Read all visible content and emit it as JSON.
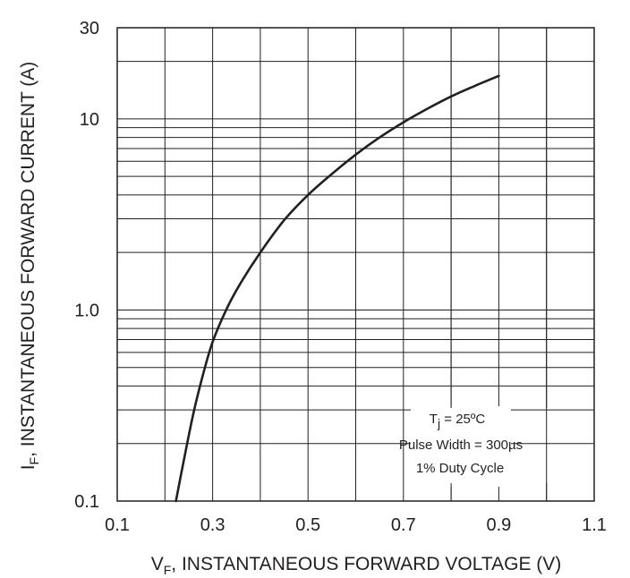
{
  "chart_data": {
    "type": "line",
    "title": "",
    "xlabel": {
      "main": "V",
      "sub": "F",
      "rest": ", INSTANTANEOUS FORWARD VOLTAGE (V)"
    },
    "ylabel": {
      "main": "I",
      "sub": "F",
      "rest": ", INSTANTANEOUS FORWARD CURRENT (A)"
    },
    "x_scale": "linear",
    "y_scale": "log",
    "xlim": [
      0.1,
      1.1
    ],
    "ylim": [
      0.1,
      30
    ],
    "x_ticks": [
      0.1,
      0.3,
      0.5,
      0.7,
      0.9,
      1.1
    ],
    "x_tick_labels": [
      "0.1",
      "0.3",
      "0.5",
      "0.7",
      "0.9",
      "1.1"
    ],
    "y_ticks": [
      0.1,
      1.0,
      10,
      30
    ],
    "y_tick_labels": [
      "0.1",
      "1.0",
      "10",
      "30"
    ],
    "grid": true,
    "x_grid_step": 0.1,
    "y_grid_minor": [
      2,
      3,
      4,
      5,
      6,
      7,
      8,
      9
    ],
    "line_color": "#231f20",
    "grid_color": "#231f20",
    "series": [
      {
        "name": "",
        "x": [
          0.223,
          0.24,
          0.26,
          0.28,
          0.3,
          0.33,
          0.36,
          0.4,
          0.45,
          0.5,
          0.55,
          0.6,
          0.65,
          0.7,
          0.75,
          0.8,
          0.85,
          0.9
        ],
        "y": [
          0.1,
          0.165,
          0.29,
          0.46,
          0.68,
          1.02,
          1.4,
          2.0,
          2.95,
          4.0,
          5.15,
          6.5,
          8.0,
          9.6,
          11.3,
          13.1,
          14.9,
          16.8
        ]
      }
    ],
    "annotation": {
      "tj_symbol": "T",
      "tj_sub": "j",
      "tj_rest": " = 25ºC",
      "line2": "Pulse Width = 300µs",
      "line3": "1% Duty Cycle"
    }
  }
}
